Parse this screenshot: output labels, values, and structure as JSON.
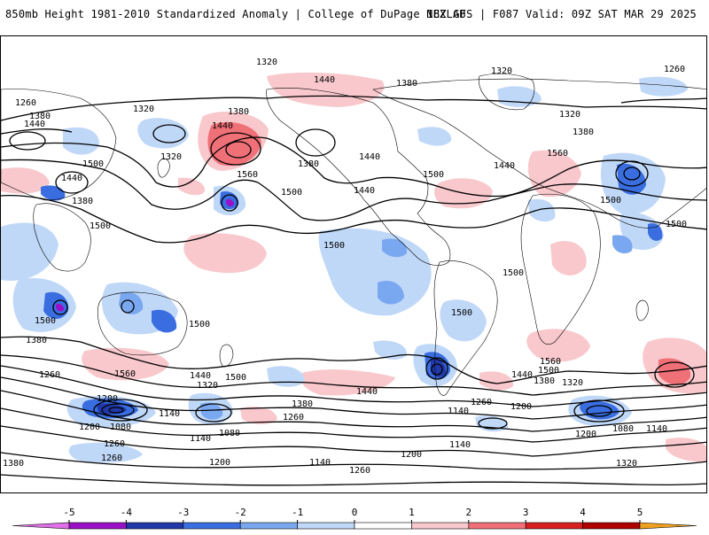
{
  "header": {
    "title_left": "850mb Height 1981-2010 Standardized Anomaly | College of DuPage NEXLAB",
    "title_right": "18Z GFS | F087 Valid: 09Z SAT MAR 29 2025"
  },
  "colorbar": {
    "ticks": [
      "-5",
      "-4",
      "-3",
      "-2",
      "-1",
      "0",
      "1",
      "2",
      "3",
      "4",
      "5"
    ],
    "colors": [
      "#e070e8",
      "#9a10c8",
      "#2238a8",
      "#3a6ee0",
      "#7aa8f0",
      "#c0d8f8",
      "#ffffff",
      "#f8c8cc",
      "#f07078",
      "#d82020",
      "#b00000",
      "#f0a020"
    ]
  },
  "map": {
    "contour_labels": [
      "1320",
      "1320",
      "1260",
      "1440",
      "1380",
      "1260",
      "1320",
      "1380",
      "1440",
      "1380",
      "1440",
      "1320",
      "1380",
      "1500",
      "1560",
      "1320",
      "1380",
      "1440",
      "1500",
      "1440",
      "1440",
      "1560",
      "1500",
      "1440",
      "1380",
      "1500",
      "1500",
      "1500",
      "1500",
      "1500",
      "1500",
      "1500",
      "1500",
      "1380",
      "1260",
      "1560",
      "1440",
      "1500",
      "1320",
      "1440",
      "1560",
      "1500",
      "1440",
      "1380",
      "1320",
      "1200",
      "1380",
      "1260",
      "1140",
      "1260",
      "1200",
      "1080",
      "1140",
      "1200",
      "1080",
      "1140",
      "1200",
      "1080",
      "1140",
      "1260",
      "1200",
      "1140",
      "1200",
      "1380",
      "1260",
      "1140",
      "1320",
      "1260"
    ],
    "anomaly_colors": {
      "neg_light": "#c0d8f8",
      "neg_mid": "#7aa8f0",
      "neg_strong": "#3a6ee0",
      "neg_deep": "#2238a8",
      "neg_extreme": "#9a10c8",
      "pos_light": "#f8c8cc",
      "pos_mid": "#f07078",
      "pos_strong": "#d82020"
    }
  }
}
